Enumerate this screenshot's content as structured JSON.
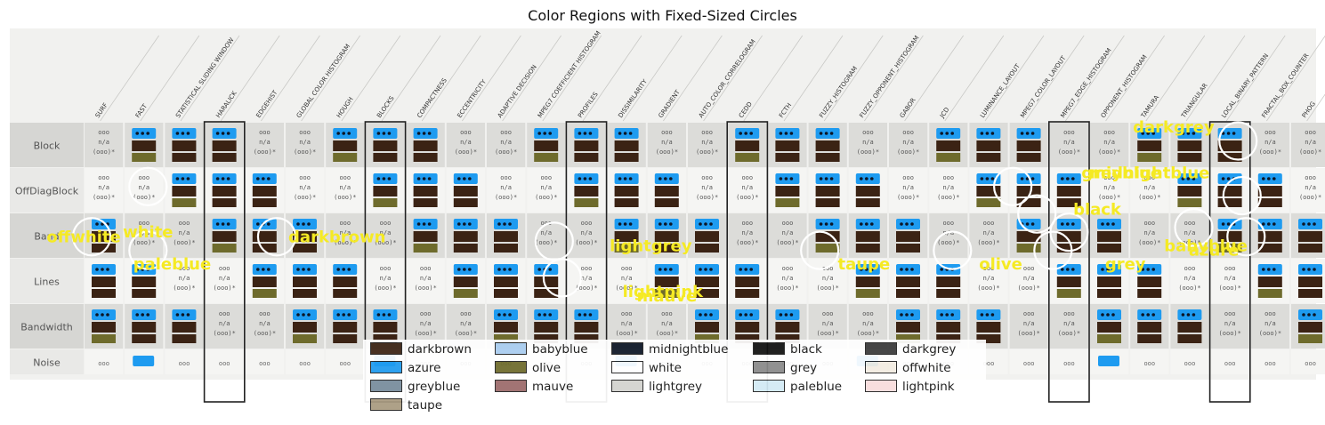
{
  "figure": {
    "title": "Color Regions with Fixed-Sized Circles"
  },
  "table": {
    "columns": [
      "SURF",
      "FAST",
      "STATISTICAL SLIDING WINDOW",
      "HARALICK",
      "EDGEHIST",
      "GLOBAL COLOR HISTOGRAM",
      "HOUGH",
      "BLOCKS",
      "COMPACTNESS",
      "ECCENTRICITY",
      "ADAPTIVE DECISION",
      "MPEG7 COEFFICIENT HISTOGRAM",
      "PROFILES",
      "DISSIMILARITY",
      "GRADIENT",
      "AUTO_COLOR_CORRELOGRAM",
      "CEDD",
      "FCTH",
      "FUZZY_HISTOGRAM",
      "FUZZY_OPPONENT_HISTOGRAM",
      "GABOR",
      "JCD",
      "LUMINANCE_LAYOUT",
      "MPEG7_COLOR_LAYOUT",
      "MPEG7_EDGE_HISTOGRAM",
      "OPPONENT_HISTOGRAM",
      "TAMURA",
      "TRIANGULAR",
      "LOCAL_BINARY_PATTERN",
      "FRACTAL_BOX_COUNTER",
      "PHOG"
    ],
    "rows": [
      "Block",
      "OffDiagBlock",
      "Band",
      "Lines",
      "Bandwidth",
      "Noise"
    ],
    "cell_text": {
      "dots": "ooo",
      "na": "n/a",
      "paren": "(ooo)*"
    }
  },
  "chart_data": {
    "type": "scatter",
    "title": "Color Regions with Fixed-Sized Circles",
    "xlabel": "",
    "ylabel": "",
    "grid": false,
    "legend_placement": "bottom-center",
    "legend": [
      {
        "name": "darkbrown",
        "color": "#3b2314"
      },
      {
        "name": "azure",
        "color": "#1e9bf0"
      },
      {
        "name": "greyblue",
        "color": "#778b9b"
      },
      {
        "name": "taupe",
        "color": "#a89a80"
      },
      {
        "name": "babyblue",
        "color": "#a9cdf0"
      },
      {
        "name": "olive",
        "color": "#6e6b2c"
      },
      {
        "name": "mauve",
        "color": "#9b6a6a"
      },
      {
        "name": "midnightblue",
        "color": "#0c1626"
      },
      {
        "name": "white",
        "color": "#ffffff"
      },
      {
        "name": "lightgrey",
        "color": "#d2d2ce"
      },
      {
        "name": "black",
        "color": "#111111"
      },
      {
        "name": "grey",
        "color": "#8a8a8a"
      },
      {
        "name": "paleblue",
        "color": "#d2eaf5"
      },
      {
        "name": "darkgrey",
        "color": "#3a3a3a"
      },
      {
        "name": "offwhite",
        "color": "#f3ede2"
      },
      {
        "name": "lightpink",
        "color": "#f8dcdc"
      }
    ],
    "annotations": [
      {
        "label": "white",
        "x": 1.1,
        "y": 1.9
      },
      {
        "label": "offwhite",
        "x": -0.5,
        "y": 2.0
      },
      {
        "label": "paleblue",
        "x": 1.7,
        "y": 2.6
      },
      {
        "label": "darkbrown",
        "x": 5.8,
        "y": 2.0
      },
      {
        "label": "lightgrey",
        "x": 13.6,
        "y": 2.2
      },
      {
        "label": "lightpink",
        "x": 13.9,
        "y": 3.2
      },
      {
        "label": "taupe",
        "x": 18.9,
        "y": 2.6
      },
      {
        "label": "olive",
        "x": 22.3,
        "y": 2.6
      },
      {
        "label": "grey",
        "x": 25.4,
        "y": 2.6
      },
      {
        "label": "black",
        "x": 24.7,
        "y": 1.4
      },
      {
        "label": "midnightblue",
        "x": 26.0,
        "y": 0.6
      },
      {
        "label": "greyblue",
        "x": 25.3,
        "y": 0.6
      },
      {
        "label": "babyblue",
        "x": 27.4,
        "y": 2.2
      },
      {
        "label": "azure",
        "x": 27.6,
        "y": 2.3
      },
      {
        "label": "darkgrey",
        "x": 26.6,
        "y": -0.4
      },
      {
        "label": "mauve",
        "x": 14.0,
        "y": 3.3
      }
    ]
  }
}
